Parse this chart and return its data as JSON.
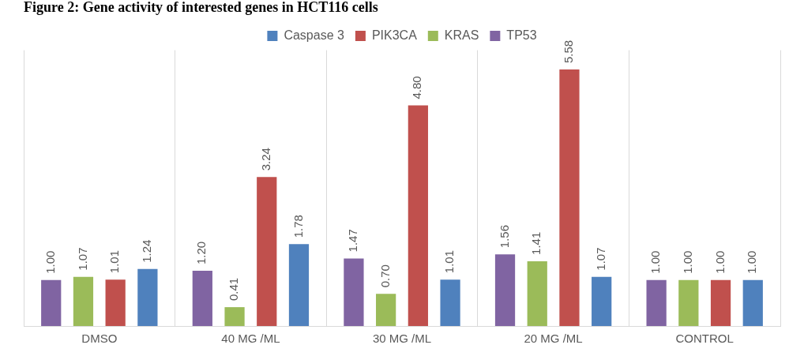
{
  "chart_data": {
    "type": "bar",
    "title": "Figure 2: Gene activity of interested genes in HCT116 cells",
    "categories": [
      "DMSO",
      "40 MG /ML",
      "30 MG /ML",
      "20 MG /ML",
      "CONTROL"
    ],
    "series": [
      {
        "name": "TP53",
        "color": "#8064a2",
        "values": [
          1.0,
          1.2,
          1.47,
          1.56,
          1.0
        ],
        "value_labels": [
          "1.00",
          "1.20",
          "1.47",
          "1.56",
          "1.00"
        ]
      },
      {
        "name": "KRAS",
        "color": "#9bbb59",
        "values": [
          1.07,
          0.41,
          0.7,
          1.41,
          1.0
        ],
        "value_labels": [
          "1.07",
          "0.41",
          "0.70",
          "1.41",
          "1.00"
        ]
      },
      {
        "name": "PIK3CA",
        "color": "#c0504d",
        "values": [
          1.01,
          3.24,
          4.8,
          5.58,
          1.0
        ],
        "value_labels": [
          "1.01",
          "3.24",
          "4.80",
          "5.58",
          "1.00"
        ]
      },
      {
        "name": "Caspase 3",
        "color": "#4f81bd",
        "values": [
          1.24,
          1.78,
          1.01,
          1.07,
          1.0
        ],
        "value_labels": [
          "1.24",
          "1.78",
          "1.01",
          "1.07",
          "1.00"
        ]
      }
    ],
    "grid": "x",
    "legend": "top"
  }
}
